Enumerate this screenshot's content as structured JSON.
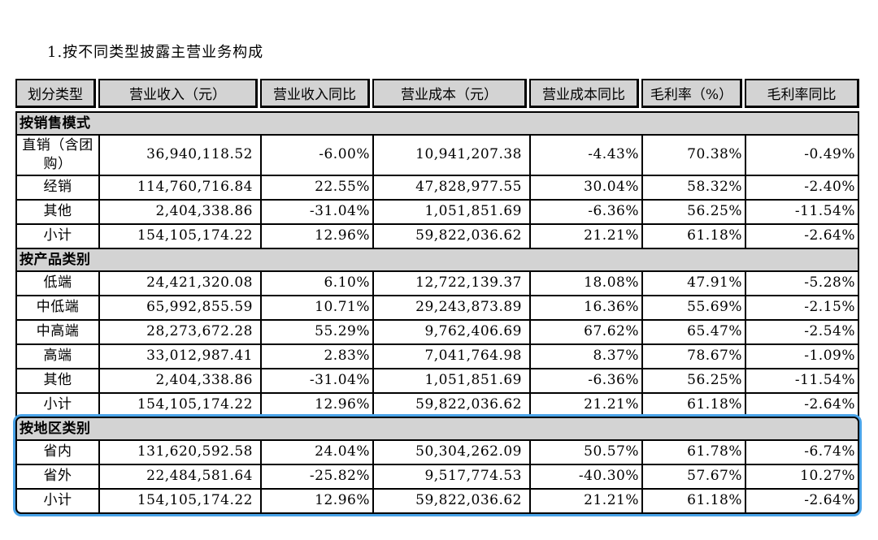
{
  "page": {
    "title": "1.按不同类型披露主营业务构成"
  },
  "colors": {
    "table_border": "#000000",
    "header_bg": "#d3d3d3",
    "section_bg": "#d3d3d3",
    "highlight_border": "#49a3e8"
  },
  "table": {
    "columns": [
      "划分类型",
      "营业收入（元）",
      "营业收入同比",
      "营业成本（元）",
      "营业成本同比",
      "毛利率（%）",
      "毛利率同比"
    ],
    "sections": [
      {
        "name": "按销售模式",
        "highlighted": false,
        "rows": [
          [
            "直销（含团购）",
            "36,940,118.52",
            "-6.00%",
            "10,941,207.38",
            "-4.43%",
            "70.38%",
            "-0.49%"
          ],
          [
            "经销",
            "114,760,716.84",
            "22.55%",
            "47,828,977.55",
            "30.04%",
            "58.32%",
            "-2.40%"
          ],
          [
            "其他",
            "2,404,338.86",
            "-31.04%",
            "1,051,851.69",
            "-6.36%",
            "56.25%",
            "-11.54%"
          ],
          [
            "小计",
            "154,105,174.22",
            "12.96%",
            "59,822,036.62",
            "21.21%",
            "61.18%",
            "-2.64%"
          ]
        ]
      },
      {
        "name": "按产品类别",
        "highlighted": false,
        "rows": [
          [
            "低端",
            "24,421,320.08",
            "6.10%",
            "12,722,139.37",
            "18.08%",
            "47.91%",
            "-5.28%"
          ],
          [
            "中低端",
            "65,992,855.59",
            "10.71%",
            "29,243,873.89",
            "16.36%",
            "55.69%",
            "-2.15%"
          ],
          [
            "中高端",
            "28,273,672.28",
            "55.29%",
            "9,762,406.69",
            "67.62%",
            "65.47%",
            "-2.54%"
          ],
          [
            "高端",
            "33,012,987.41",
            "2.83%",
            "7,041,764.98",
            "8.37%",
            "78.67%",
            "-1.09%"
          ],
          [
            "其他",
            "2,404,338.86",
            "-31.04%",
            "1,051,851.69",
            "-6.36%",
            "56.25%",
            "-11.54%"
          ],
          [
            "小计",
            "154,105,174.22",
            "12.96%",
            "59,822,036.62",
            "21.21%",
            "61.18%",
            "-2.64%"
          ]
        ]
      },
      {
        "name": "按地区类别",
        "highlighted": true,
        "rows": [
          [
            "省内",
            "131,620,592.58",
            "24.04%",
            "50,304,262.09",
            "50.57%",
            "61.78%",
            "-6.74%"
          ],
          [
            "省外",
            "22,484,581.64",
            "-25.82%",
            "9,517,774.53",
            "-40.30%",
            "57.67%",
            "10.27%"
          ],
          [
            "小计",
            "154,105,174.22",
            "12.96%",
            "59,822,036.62",
            "21.21%",
            "61.18%",
            "-2.64%"
          ]
        ]
      }
    ]
  }
}
